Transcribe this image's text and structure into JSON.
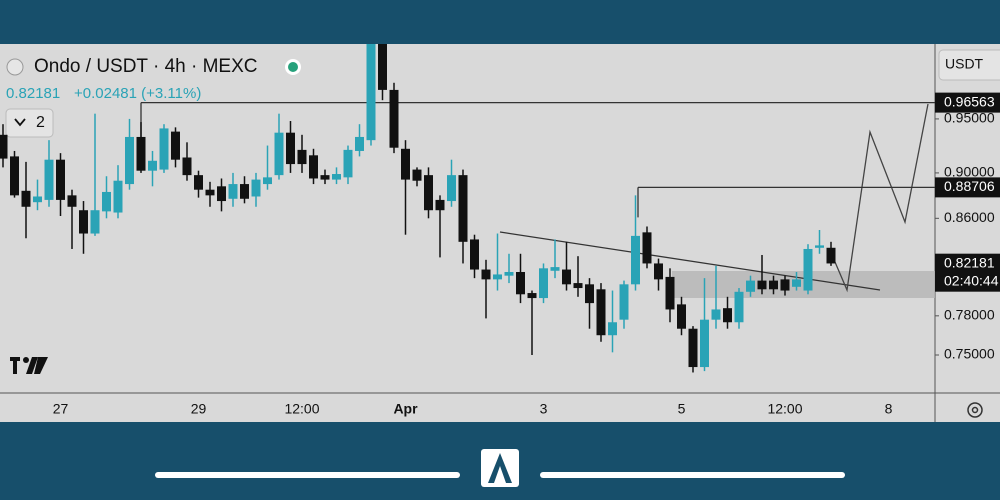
{
  "chart_data": {
    "type": "candlestick",
    "title": "Ondo / USDT · 4h · MEXC",
    "price": 0.82181,
    "change": "+0.02481 (+3.11%)",
    "indicator_count": "2",
    "currency": "USDT",
    "countdown": "02:40:44",
    "up_color": "#2aa3b6",
    "down_color": "#111111",
    "log_scale": true,
    "grid": false,
    "ylim": [
      0.722,
      1.024
    ],
    "yticks": [
      {
        "value": 0.95,
        "label": "0.95000"
      },
      {
        "value": 0.9,
        "label": "0.90000"
      },
      {
        "value": 0.86,
        "label": "0.86000"
      },
      {
        "value": 0.78,
        "label": "0.78000"
      },
      {
        "value": 0.75,
        "label": "0.75000"
      }
    ],
    "price_lines": [
      0.96563,
      0.88706
    ],
    "categories": [
      null,
      null,
      null,
      null,
      null,
      "27",
      null,
      null,
      null,
      null,
      null,
      null,
      null,
      null,
      null,
      null,
      null,
      "29",
      null,
      null,
      null,
      null,
      null,
      null,
      null,
      null,
      "12:00",
      null,
      null,
      null,
      null,
      null,
      null,
      null,
      null,
      "Apr",
      null,
      null,
      null,
      null,
      null,
      null,
      null,
      null,
      null,
      null,
      null,
      "3",
      null,
      null,
      null,
      null,
      null,
      null,
      null,
      null,
      null,
      null,
      null,
      "5",
      null,
      null,
      null,
      null,
      null,
      null,
      null,
      null,
      "12:00",
      null,
      null,
      null,
      null,
      null,
      null,
      null,
      null,
      "8"
    ],
    "open": [
      0.935,
      0.915,
      0.884,
      0.874,
      0.876,
      0.912,
      0.88,
      0.867,
      0.847,
      0.866,
      0.865,
      0.89,
      0.933,
      0.902,
      0.903,
      0.938,
      0.914,
      0.898,
      0.885,
      0.888,
      0.877,
      0.89,
      0.879,
      0.89,
      0.898,
      0.937,
      0.921,
      0.916,
      0.898,
      0.894,
      0.896,
      0.92,
      0.93,
      1.024,
      0.978,
      0.922,
      0.903,
      0.898,
      0.876,
      0.875,
      0.898,
      0.842,
      0.817,
      0.809,
      0.812,
      0.815,
      0.798,
      0.794,
      0.816,
      0.817,
      0.806,
      0.805,
      0.801,
      0.765,
      0.777,
      0.805,
      0.848,
      0.822,
      0.811,
      0.789,
      0.77,
      0.741,
      0.777,
      0.786,
      0.775,
      0.799,
      0.808,
      0.808,
      0.809,
      0.803,
      0.8,
      0.835,
      0.835,
      null,
      null,
      null,
      null,
      null
    ],
    "high": [
      0.945,
      0.92,
      0.91,
      0.894,
      0.93,
      0.918,
      0.885,
      0.875,
      0.955,
      0.897,
      0.907,
      0.95,
      0.947,
      0.92,
      0.945,
      0.942,
      0.928,
      0.902,
      0.892,
      0.895,
      0.9,
      0.897,
      0.9,
      0.925,
      0.955,
      0.948,
      0.935,
      0.922,
      0.903,
      0.905,
      0.925,
      0.945,
      1.024,
      1.024,
      0.985,
      0.93,
      0.905,
      0.905,
      0.88,
      0.912,
      0.903,
      0.846,
      0.825,
      0.847,
      0.83,
      0.83,
      0.8,
      0.822,
      0.842,
      0.84,
      0.828,
      0.81,
      0.806,
      0.8,
      0.808,
      0.88,
      0.853,
      0.826,
      0.818,
      0.795,
      0.772,
      0.81,
      0.82,
      0.795,
      0.802,
      0.812,
      0.829,
      0.812,
      0.812,
      0.815,
      0.838,
      0.85,
      0.84,
      null,
      null,
      null,
      null,
      null
    ],
    "low": [
      0.905,
      0.878,
      0.843,
      0.867,
      0.87,
      0.862,
      0.834,
      0.83,
      0.845,
      0.86,
      0.86,
      0.885,
      0.9,
      0.888,
      0.9,
      0.905,
      0.893,
      0.878,
      0.87,
      0.866,
      0.87,
      0.873,
      0.87,
      0.885,
      0.894,
      0.9,
      0.9,
      0.89,
      0.89,
      0.89,
      0.89,
      0.915,
      0.925,
      0.968,
      0.918,
      0.846,
      0.888,
      0.86,
      0.827,
      0.87,
      0.822,
      0.81,
      0.778,
      0.8,
      0.806,
      0.79,
      0.75,
      0.79,
      0.81,
      0.8,
      0.795,
      0.77,
      0.76,
      0.752,
      0.77,
      0.8,
      0.818,
      0.8,
      0.775,
      0.765,
      0.737,
      0.738,
      0.77,
      0.77,
      0.77,
      0.795,
      0.797,
      0.797,
      0.796,
      0.8,
      0.797,
      0.83,
      0.82,
      null,
      null,
      null,
      null,
      null
    ],
    "close": [
      0.913,
      0.88,
      0.87,
      0.879,
      0.912,
      0.876,
      0.87,
      0.847,
      0.867,
      0.883,
      0.893,
      0.933,
      0.902,
      0.911,
      0.941,
      0.912,
      0.898,
      0.885,
      0.88,
      0.875,
      0.89,
      0.877,
      0.894,
      0.896,
      0.937,
      0.908,
      0.908,
      0.895,
      0.894,
      0.899,
      0.921,
      0.933,
      1.024,
      0.978,
      0.923,
      0.894,
      0.893,
      0.867,
      0.867,
      0.898,
      0.84,
      0.817,
      0.809,
      0.813,
      0.815,
      0.797,
      0.794,
      0.818,
      0.819,
      0.805,
      0.802,
      0.79,
      0.765,
      0.775,
      0.805,
      0.845,
      0.822,
      0.809,
      0.785,
      0.77,
      0.741,
      0.777,
      0.785,
      0.775,
      0.799,
      0.808,
      0.801,
      0.801,
      0.8,
      0.809,
      0.834,
      0.837,
      0.822,
      null,
      null,
      null,
      null,
      null
    ]
  }
}
